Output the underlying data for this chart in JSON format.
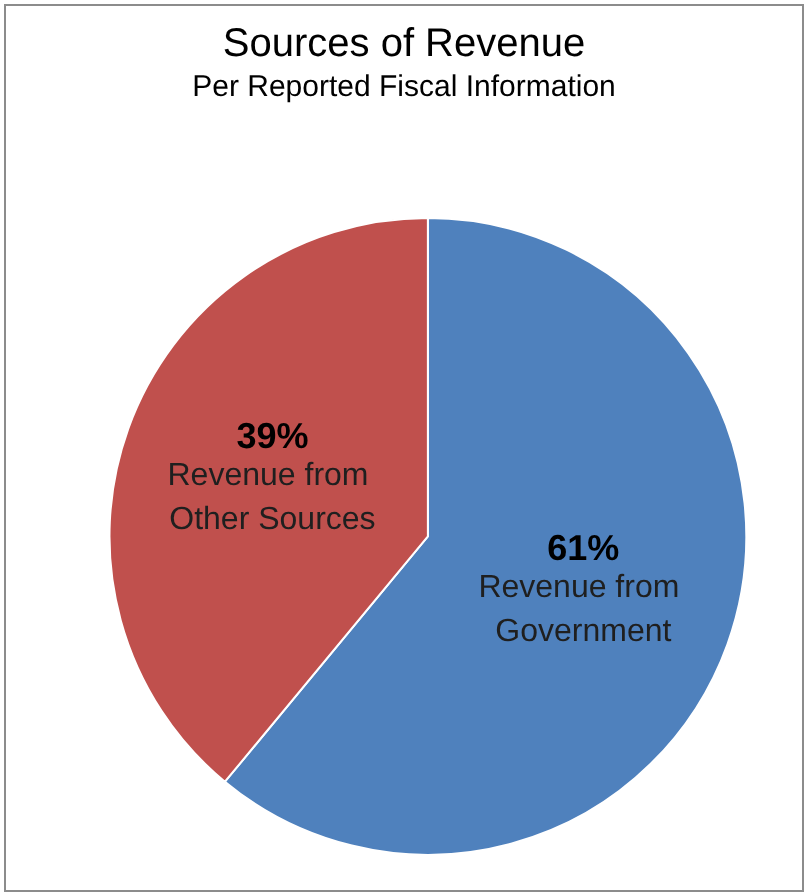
{
  "chart_data": {
    "type": "pie",
    "title": "Sources of Revenue",
    "subtitle": "Per Reported Fiscal Information",
    "categories": [
      "Revenue from Government",
      "Revenue from Other Sources"
    ],
    "values": [
      61,
      39
    ],
    "colors": [
      "#4f81bd",
      "#c0504d"
    ],
    "value_labels": [
      "61%",
      "39%"
    ]
  }
}
